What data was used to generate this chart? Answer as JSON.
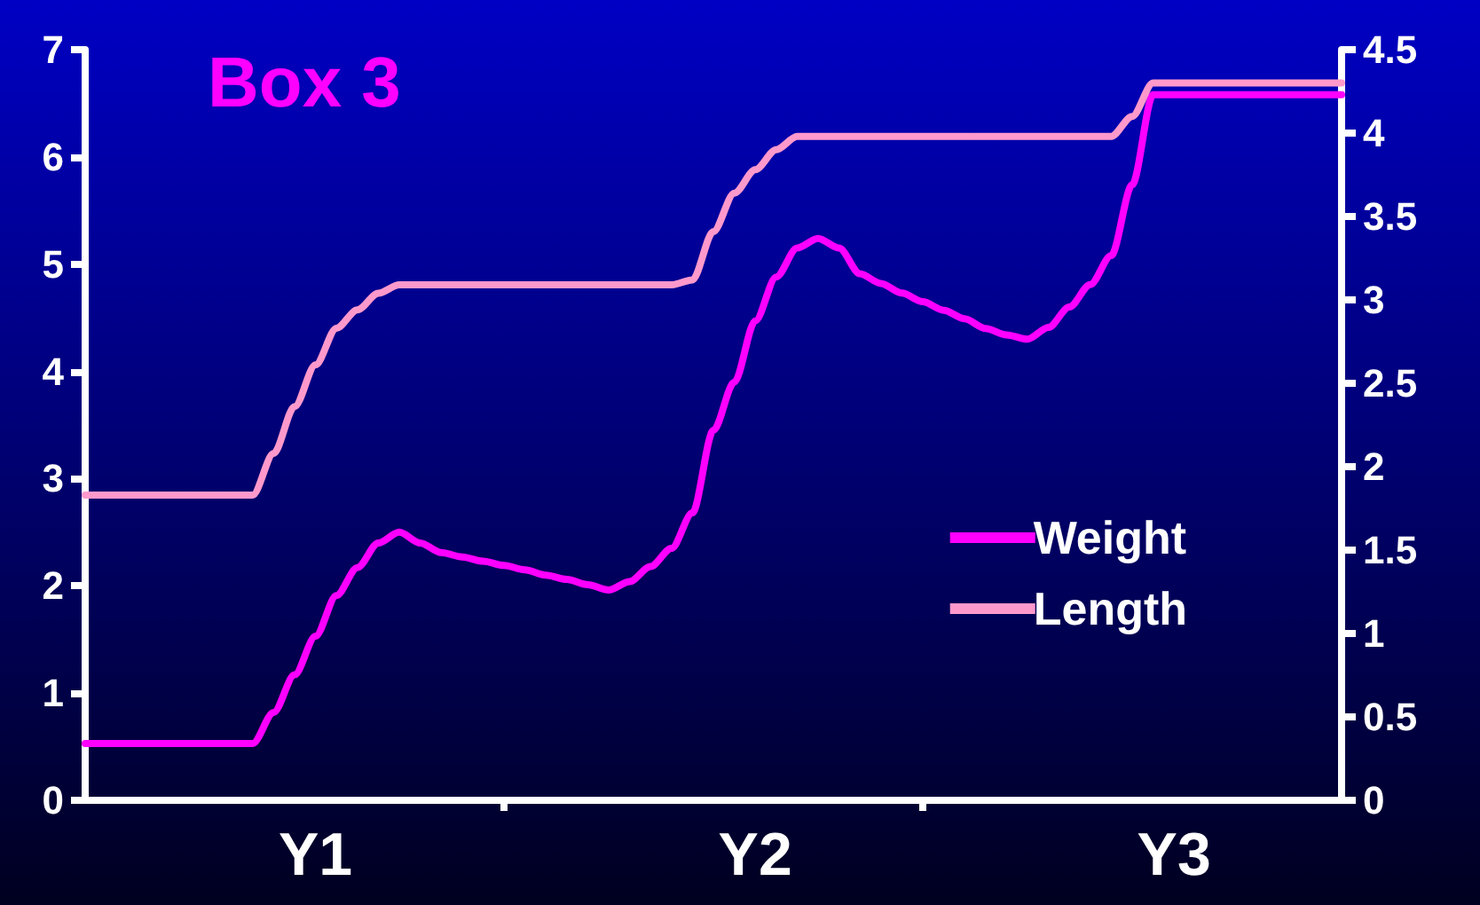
{
  "chart_data": {
    "type": "line",
    "title": "Box 3",
    "categories": [
      null,
      null,
      null,
      null,
      null,
      null,
      null,
      null,
      null,
      null,
      null,
      "Y1",
      null,
      null,
      null,
      null,
      null,
      null,
      null,
      null,
      null,
      null,
      null,
      null,
      null,
      null,
      null,
      null,
      null,
      null,
      null,
      null,
      "Y2",
      null,
      null,
      null,
      null,
      null,
      null,
      null,
      null,
      null,
      null,
      null,
      null,
      null,
      null,
      null,
      null,
      null,
      null,
      null,
      "Y3",
      null,
      null,
      null,
      null,
      null,
      null,
      null,
      null
    ],
    "ylim": [
      0,
      7
    ],
    "yticks": [
      0,
      1,
      2,
      3,
      4,
      5,
      6,
      7
    ],
    "y2lim": [
      0,
      4.5
    ],
    "y2ticks": [
      0,
      0.5,
      1,
      1.5,
      2,
      2.5,
      3,
      3.5,
      4,
      4.5
    ],
    "series": [
      {
        "name": "Weight",
        "color": "#ff00ff",
        "values": [
          0.53,
          0.53,
          0.53,
          0.53,
          0.53,
          0.53,
          0.53,
          0.53,
          0.53,
          0.82,
          1.17,
          1.53,
          1.91,
          2.17,
          2.4,
          2.5,
          2.4,
          2.31,
          2.27,
          2.23,
          2.19,
          2.15,
          2.1,
          2.06,
          2.01,
          1.96,
          2.04,
          2.18,
          2.35,
          2.68,
          3.45,
          3.9,
          4.47,
          4.88,
          5.15,
          5.24,
          5.15,
          4.91,
          4.82,
          4.73,
          4.65,
          4.57,
          4.49,
          4.4,
          4.34,
          4.3,
          4.41,
          4.6,
          4.81,
          5.08,
          5.74,
          6.58,
          6.58,
          6.58,
          6.58,
          6.58,
          6.58,
          6.58,
          6.58,
          6.58,
          6.58
        ]
      },
      {
        "name": "Length",
        "color": "#ff99cc",
        "axis": "y2",
        "values": [
          1.83,
          1.83,
          1.83,
          1.83,
          1.83,
          1.83,
          1.83,
          1.83,
          1.83,
          2.08,
          2.36,
          2.61,
          2.83,
          2.94,
          3.04,
          3.09,
          3.09,
          3.09,
          3.09,
          3.09,
          3.09,
          3.09,
          3.09,
          3.09,
          3.09,
          3.09,
          3.09,
          3.09,
          3.09,
          3.12,
          3.41,
          3.64,
          3.78,
          3.9,
          3.98,
          3.98,
          3.98,
          3.98,
          3.98,
          3.98,
          3.98,
          3.98,
          3.98,
          3.98,
          3.98,
          3.98,
          3.98,
          3.98,
          3.98,
          3.98,
          4.1,
          4.3,
          4.3,
          4.3,
          4.3,
          4.3,
          4.3,
          4.3,
          4.3,
          4.3,
          4.3
        ]
      }
    ],
    "legend": "right",
    "grid": false,
    "marker": "none",
    "line_style": "solid"
  }
}
